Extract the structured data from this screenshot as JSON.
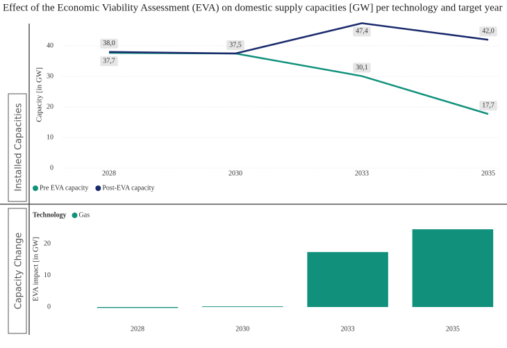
{
  "title": "Effect of the Economic Viability Assessment (EVA) on domestic supply capacities [GW] per technology and target year",
  "panels": [
    "Installed Capacities",
    "Capacity Change"
  ],
  "chart_data": [
    {
      "type": "line",
      "ylabel": "Capacity [in GW]",
      "categories": [
        "2028",
        "2030",
        "2033",
        "2035"
      ],
      "series": [
        {
          "name": "Pre EVA capacity",
          "color": "#11917c",
          "values": [
            37.7,
            37.5,
            30.1,
            17.7
          ],
          "value_labels": [
            "37,7",
            "37,5",
            "30,1",
            "17,7"
          ]
        },
        {
          "name": "Post-EVA capacity",
          "color": "#1a2a6c",
          "values": [
            38.0,
            37.5,
            47.4,
            42.0
          ],
          "value_labels": [
            "38,0",
            "37,5",
            "47,4",
            "42,0"
          ]
        }
      ],
      "ylim": [
        0,
        48
      ],
      "yticks": [
        0,
        10,
        20,
        30,
        40
      ],
      "grid": true,
      "legend": "bottom-left"
    },
    {
      "type": "bar",
      "ylabel": "EVA impact [in GW]",
      "legend_title": "Technology",
      "categories": [
        "2028",
        "2030",
        "2033",
        "2035"
      ],
      "series": [
        {
          "name": "Gas",
          "color": "#11917c",
          "values": [
            -0.3,
            0.2,
            17.4,
            24.6
          ]
        }
      ],
      "ylim": [
        -2,
        26
      ],
      "yticks": [
        0,
        10,
        20
      ],
      "grid": false,
      "legend": "top-left"
    }
  ]
}
